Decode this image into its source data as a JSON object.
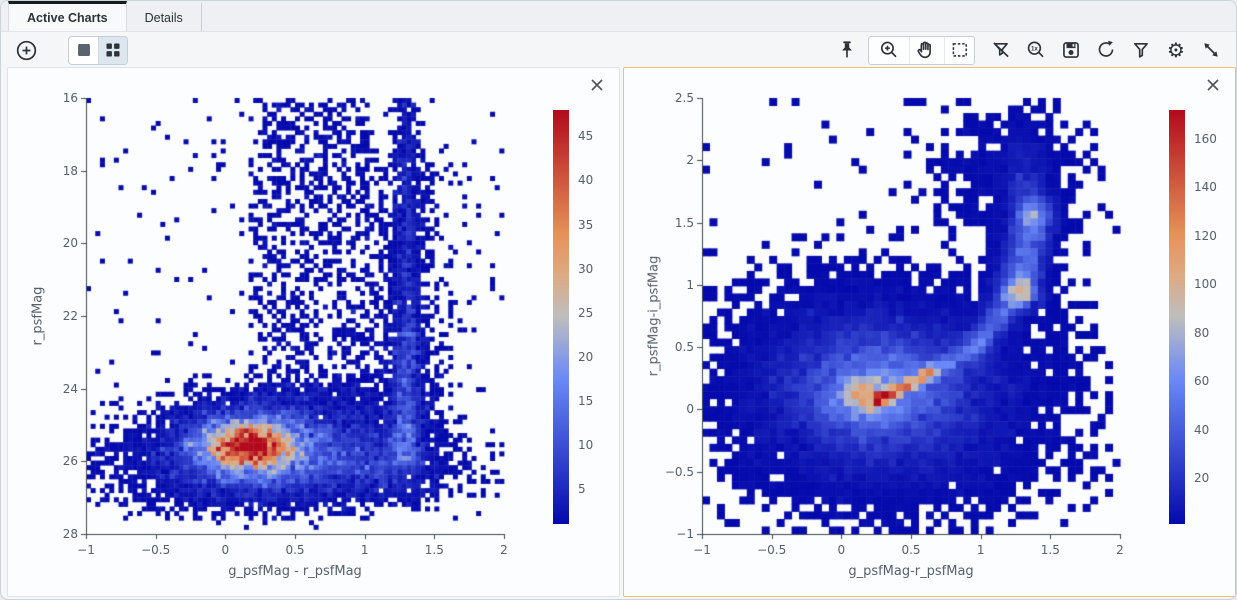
{
  "tabs": [
    {
      "label": "Active Charts",
      "active": true
    },
    {
      "label": "Details",
      "active": false
    }
  ],
  "toolbar": {
    "add_chart": {
      "icon": "plus-circle-icon"
    },
    "view_modes": [
      {
        "name": "single-view",
        "icon": "single-tile-icon",
        "selected": false
      },
      {
        "name": "grid-view",
        "icon": "grid-tiles-icon",
        "selected": true
      }
    ],
    "right_tools": [
      {
        "name": "pin",
        "icon": "pin-icon"
      },
      {
        "name": "zoom-in",
        "icon": "magnifier-plus-icon"
      },
      {
        "name": "pan",
        "icon": "hand-icon"
      },
      {
        "name": "select-area",
        "icon": "selection-box-icon"
      },
      {
        "name": "clear-filters",
        "icon": "filter-slash-icon"
      },
      {
        "name": "zoom-original",
        "icon": "magnifier-1x-icon",
        "glyph": "1x"
      },
      {
        "name": "save",
        "icon": "save-icon"
      },
      {
        "name": "restore",
        "icon": "restore-arrow-icon"
      },
      {
        "name": "filter",
        "icon": "filter-icon"
      },
      {
        "name": "settings",
        "icon": "gear-icon",
        "glyph": "⚙"
      },
      {
        "name": "expand",
        "icon": "expand-diagonal-icon"
      }
    ]
  },
  "accent_colors": {
    "selected_panel_border": "#f1bd83",
    "active_tab_bar": "#17191b"
  },
  "chart_data": [
    {
      "type": "heatmap",
      "title": "",
      "xlabel": "g_psfMag - r_psfMag",
      "ylabel": "r_psfMag",
      "xlim": [
        -1,
        2
      ],
      "ytop": 16,
      "ybottom": 28,
      "xticks": [
        -1,
        -0.5,
        0,
        0.5,
        1,
        1.5,
        2
      ],
      "yticks": [
        16,
        18,
        20,
        22,
        24,
        26,
        28
      ],
      "zmin": 1,
      "zmax": 48,
      "colorbar_ticks": [
        5,
        10,
        15,
        20,
        25,
        30,
        35,
        40,
        45
      ],
      "colorscale": [
        [
          0,
          [
            5,
            10,
            172
          ]
        ],
        [
          0.35,
          [
            106,
            137,
            247
          ]
        ],
        [
          0.5,
          [
            190,
            190,
            190
          ]
        ],
        [
          0.6,
          [
            220,
            170,
            132
          ]
        ],
        [
          0.7,
          [
            230,
            145,
            90
          ]
        ],
        [
          1,
          [
            178,
            10,
            28
          ]
        ]
      ],
      "nbins": [
        90,
        95
      ],
      "seed": 424243,
      "selected": false,
      "fade_y": {
        "start": 27.05,
        "end": 27.9
      },
      "components": [
        {
          "type": "gauss",
          "cx": 0.17,
          "cy": 25.55,
          "sx": 0.24,
          "sy": 0.52,
          "amp": 34
        },
        {
          "type": "gauss",
          "cx": 0.17,
          "cy": 25.5,
          "sx": 0.11,
          "sy": 0.24,
          "amp": 16
        },
        {
          "type": "gauss",
          "cx": 0.55,
          "cy": 25.7,
          "sx": 0.42,
          "sy": 0.7,
          "amp": 8
        },
        {
          "type": "gauss",
          "cx": -0.05,
          "cy": 26.0,
          "sx": 0.45,
          "sy": 0.75,
          "amp": 4
        },
        {
          "type": "gauss",
          "cx": 0.9,
          "cy": 26.2,
          "sx": 0.4,
          "sy": 0.55,
          "amp": 2.5
        },
        {
          "type": "segment",
          "x1": 1.3,
          "y1": 16.0,
          "x2": 1.31,
          "y2": 22.5,
          "w": 0.045,
          "amp1": 2.2,
          "amp2": 5
        },
        {
          "type": "segment",
          "x1": 1.31,
          "y1": 22.5,
          "x2": 1.29,
          "y2": 26.0,
          "w": 0.06,
          "amp1": 5,
          "amp2": 11
        },
        {
          "type": "segment",
          "x1": 1.3,
          "y1": 17.5,
          "x2": 1.3,
          "y2": 25.5,
          "w": 0.14,
          "amp1": 0.7,
          "amp2": 2.2
        },
        {
          "type": "box",
          "x1": 0.18,
          "x2": 1.02,
          "y1": 16.0,
          "y2": 24.3,
          "amp": 0.5
        },
        {
          "type": "box",
          "x1": 0.05,
          "x2": 1.1,
          "y1": 23.8,
          "y2": 24.8,
          "amp": 1.1
        },
        {
          "type": "gauss",
          "cx": 1.22,
          "cy": 26.3,
          "sx": 0.16,
          "sy": 0.45,
          "amp": 3.5
        },
        {
          "type": "box",
          "x1": -1,
          "x2": 2,
          "y1": 16,
          "y2": 27.6,
          "amp": 0.035
        }
      ]
    },
    {
      "type": "heatmap",
      "title": "",
      "xlabel": "g_psfMag-r_psfMag",
      "ylabel": "r_psfMag-i_psfMag",
      "xlim": [
        -1,
        2
      ],
      "ytop": 2.5,
      "ybottom": -1,
      "xticks": [
        -1,
        -0.5,
        0,
        0.5,
        1,
        1.5,
        2
      ],
      "yticks": [
        -1,
        -0.5,
        0,
        0.5,
        1,
        1.5,
        2,
        2.5
      ],
      "zmin": 1,
      "zmax": 172,
      "colorbar_ticks": [
        20,
        40,
        60,
        80,
        100,
        120,
        140,
        160
      ],
      "colorscale": [
        [
          0,
          [
            5,
            10,
            172
          ]
        ],
        [
          0.35,
          [
            106,
            137,
            247
          ]
        ],
        [
          0.5,
          [
            190,
            190,
            190
          ]
        ],
        [
          0.6,
          [
            220,
            170,
            132
          ]
        ],
        [
          0.7,
          [
            230,
            145,
            90
          ]
        ],
        [
          1,
          [
            178,
            10,
            28
          ]
        ]
      ],
      "nbins": [
        56,
        58
      ],
      "seed": 90517,
      "selected": true,
      "components": [
        {
          "type": "gauss",
          "cx": 0.28,
          "cy": 0.16,
          "sx": 0.36,
          "sy": 0.27,
          "amp": 48
        },
        {
          "type": "gauss",
          "cx": 0.33,
          "cy": 0.12,
          "sx": 0.58,
          "sy": 0.42,
          "amp": 13
        },
        {
          "type": "gauss",
          "cx": 0.16,
          "cy": 0.1,
          "sx": 0.11,
          "sy": 0.1,
          "amp": 60
        },
        {
          "type": "segment",
          "x1": 0.27,
          "y1": 0.08,
          "x2": 0.62,
          "y2": 0.28,
          "w": 0.032,
          "amp1": 115,
          "amp2": 55
        },
        {
          "type": "segment",
          "x1": 0.62,
          "y1": 0.28,
          "x2": 0.97,
          "y2": 0.52,
          "w": 0.05,
          "amp1": 42,
          "amp2": 26
        },
        {
          "type": "segment",
          "x1": 0.97,
          "y1": 0.52,
          "x2": 1.28,
          "y2": 0.95,
          "w": 0.07,
          "amp1": 28,
          "amp2": 50
        },
        {
          "type": "segment",
          "x1": 1.28,
          "y1": 0.95,
          "x2": 1.37,
          "y2": 1.55,
          "w": 0.09,
          "amp1": 55,
          "amp2": 42
        },
        {
          "type": "segment",
          "x1": 1.37,
          "y1": 1.55,
          "x2": 1.28,
          "y2": 2.15,
          "w": 0.09,
          "amp1": 28,
          "amp2": 5
        },
        {
          "type": "gauss",
          "cx": 1.2,
          "cy": 1.95,
          "sx": 0.28,
          "sy": 0.3,
          "amp": 2.5
        },
        {
          "type": "gauss",
          "cx": 0.5,
          "cy": -0.45,
          "sx": 0.5,
          "sy": 0.22,
          "amp": 1.8
        },
        {
          "type": "gauss",
          "cx": 0.0,
          "cy": 0.6,
          "sx": 0.35,
          "sy": 0.25,
          "amp": 3
        },
        {
          "type": "box",
          "x1": -1,
          "x2": 2,
          "y1": -1,
          "y2": 2.5,
          "amp": 0.04
        }
      ]
    }
  ]
}
